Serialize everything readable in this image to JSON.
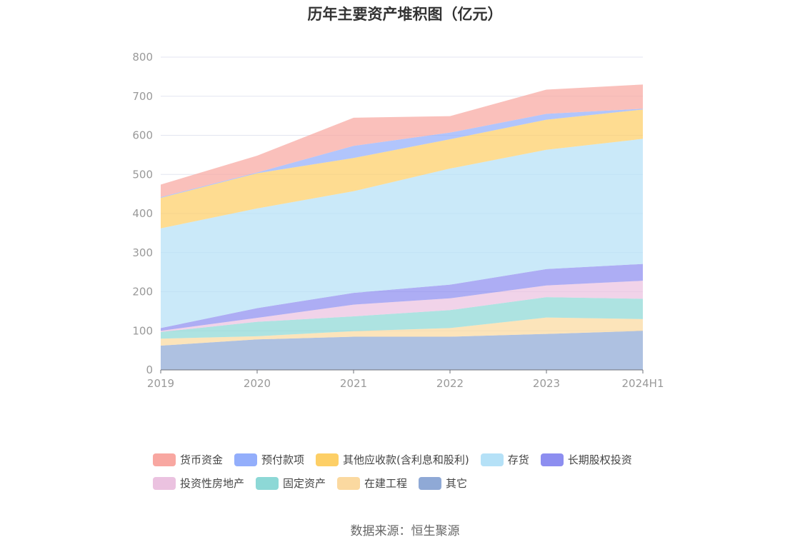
{
  "chart_data": {
    "type": "area",
    "stacked": true,
    "title": "历年主要资产堆积图（亿元）",
    "categories": [
      "2019",
      "2020",
      "2021",
      "2022",
      "2023",
      "2024H1"
    ],
    "ylim": [
      0,
      800
    ],
    "yticks": [
      0,
      100,
      200,
      300,
      400,
      500,
      600,
      700,
      800
    ],
    "grid": true,
    "legend_position": "bottom",
    "series": [
      {
        "name": "其它",
        "color": "#8fa9d6",
        "values": [
          62,
          78,
          85,
          85,
          92,
          100
        ]
      },
      {
        "name": "在建工程",
        "color": "#fbd9a0",
        "values": [
          18,
          8,
          14,
          22,
          42,
          30
        ]
      },
      {
        "name": "固定资产",
        "color": "#8dd8d6",
        "values": [
          17,
          37,
          38,
          46,
          52,
          52
        ]
      },
      {
        "name": "投资性房地产",
        "color": "#ebc2e0",
        "values": [
          3,
          10,
          30,
          30,
          30,
          46
        ]
      },
      {
        "name": "长期股权投资",
        "color": "#8d8ef0",
        "values": [
          7,
          25,
          30,
          35,
          42,
          43
        ]
      },
      {
        "name": "存货",
        "color": "#b5e1f7",
        "values": [
          255,
          255,
          260,
          297,
          305,
          320
        ]
      },
      {
        "name": "其他应收款(含利息和股利)",
        "color": "#fdcf66",
        "values": [
          78,
          90,
          85,
          75,
          77,
          75
        ]
      },
      {
        "name": "预付款项",
        "color": "#93aefb",
        "values": [
          2,
          2,
          31,
          17,
          15,
          2
        ]
      },
      {
        "name": "货币资金",
        "color": "#f8a7a1",
        "values": [
          32,
          43,
          72,
          42,
          62,
          62
        ]
      }
    ]
  },
  "legend_rows": [
    [
      "货币资金",
      "预付款项",
      "其他应收款(含利息和股利)",
      "存货",
      "长期股权投资"
    ],
    [
      "投资性房地产",
      "固定资产",
      "在建工程",
      "其它"
    ]
  ],
  "source": "数据来源：恒生聚源"
}
